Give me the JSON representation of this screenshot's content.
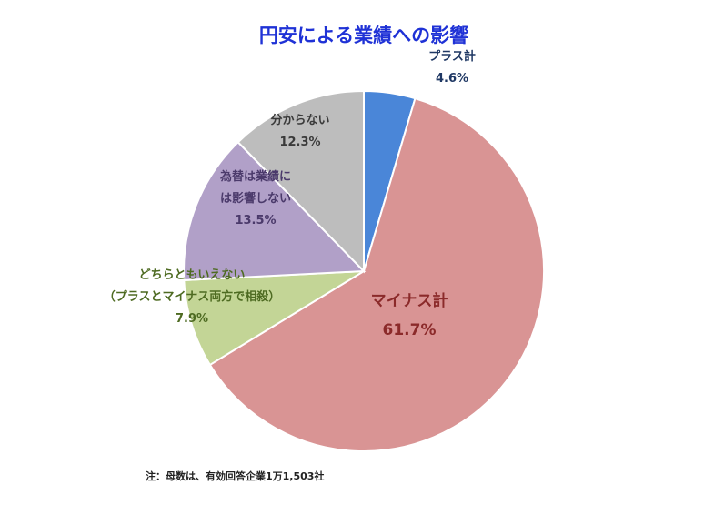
{
  "chart_data": {
    "type": "pie",
    "title": "円安による業績への影響",
    "slices": [
      {
        "lines": [
          "プラス計"
        ],
        "value": 4.6,
        "value_label": "4.6%",
        "color": "#4a86d8"
      },
      {
        "lines": [
          "マイナス計"
        ],
        "value": 61.7,
        "value_label": "61.7%",
        "color": "#d99494"
      },
      {
        "lines": [
          "どちらともいえない",
          "（プラスとマイナス両方で相殺）"
        ],
        "value": 7.9,
        "value_label": "7.9%",
        "color": "#c3d596"
      },
      {
        "lines": [
          "為替は業績に",
          "は影響しない"
        ],
        "value": 13.5,
        "value_label": "13.5%",
        "color": "#b1a0c8"
      },
      {
        "lines": [
          "分からない"
        ],
        "value": 12.3,
        "value_label": "12.3%",
        "color": "#bdbdbd"
      }
    ],
    "start": "12 o'clock, clockwise",
    "legend": "none",
    "title_color": "#1f32d6",
    "label_colors": [
      "#1f3864",
      "#8b2a2a",
      "#4e6b22",
      "#4b3a6b",
      "#3a3a3a"
    ]
  },
  "footnote": "注：母数は、有効回答企業1万1,503社"
}
